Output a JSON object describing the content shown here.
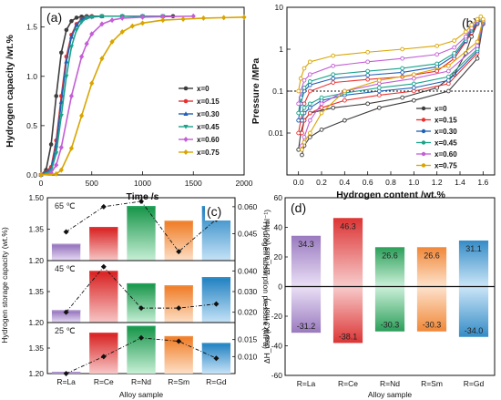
{
  "colors": {
    "x=0": "#3c3c3c",
    "x=0.15": "#e8312f",
    "x=0.30": "#1f5fb5",
    "x=0.45": "#18a38a",
    "x=0.60": "#c35ed6",
    "x=0.75": "#d9a400",
    "La": "#a88cc9",
    "Ce": "#e23030",
    "Nd": "#21a35c",
    "Sm": "#f08a3a",
    "Gd": "#2f8fc9"
  },
  "chart_data": [
    {
      "panel": "(a)",
      "type": "line",
      "xlabel": "Time /s",
      "ylabel": "Hydrogen capacity /wt.%",
      "xlim": [
        0,
        2000
      ],
      "ylim": [
        0,
        1.7
      ],
      "xticks": [
        "0",
        "500",
        "1000",
        "1500",
        "2000"
      ],
      "yticks": [
        "0.0",
        "0.5",
        "1.0",
        "1.5"
      ],
      "legend_position": "center-right",
      "series": [
        {
          "name": "x=0",
          "x": [
            0,
            50,
            100,
            150,
            200,
            250,
            300,
            350,
            400,
            450,
            500,
            600,
            800,
            1000,
            1300
          ],
          "y": [
            0,
            0.05,
            0.31,
            0.8,
            1.24,
            1.47,
            1.56,
            1.595,
            1.605,
            1.61,
            1.61,
            1.61,
            1.61,
            1.61,
            1.61
          ]
        },
        {
          "name": "x=0.15",
          "x": [
            0,
            100,
            150,
            200,
            250,
            300,
            350,
            400,
            450,
            500,
            600,
            800,
            1000,
            1200
          ],
          "y": [
            0,
            0.08,
            0.35,
            0.8,
            1.2,
            1.42,
            1.53,
            1.58,
            1.6,
            1.605,
            1.61,
            1.61,
            1.61,
            1.61
          ]
        },
        {
          "name": "x=0.30",
          "x": [
            0,
            100,
            150,
            200,
            250,
            300,
            350,
            400,
            450,
            500,
            600,
            800,
            1000,
            1200
          ],
          "y": [
            0,
            0.06,
            0.3,
            0.74,
            1.15,
            1.4,
            1.52,
            1.58,
            1.6,
            1.605,
            1.61,
            1.61,
            1.61,
            1.61
          ]
        },
        {
          "name": "x=0.45",
          "x": [
            0,
            100,
            150,
            200,
            250,
            300,
            350,
            400,
            450,
            500,
            600,
            800,
            1000,
            1200
          ],
          "y": [
            0,
            0.04,
            0.22,
            0.6,
            1.0,
            1.3,
            1.47,
            1.55,
            1.59,
            1.6,
            1.61,
            1.61,
            1.61,
            1.61
          ]
        },
        {
          "name": "x=0.60",
          "x": [
            0,
            100,
            150,
            200,
            300,
            400,
            450,
            500,
            600,
            700,
            800,
            1000,
            1200,
            1500
          ],
          "y": [
            0,
            0.02,
            0.1,
            0.28,
            0.8,
            1.2,
            1.33,
            1.43,
            1.53,
            1.57,
            1.59,
            1.6,
            1.605,
            1.61
          ]
        },
        {
          "name": "x=0.75",
          "x": [
            0,
            150,
            200,
            300,
            400,
            500,
            600,
            700,
            800,
            900,
            1000,
            1200,
            1400,
            1600,
            1800,
            2000
          ],
          "y": [
            0,
            0.01,
            0.05,
            0.27,
            0.6,
            0.93,
            1.18,
            1.35,
            1.45,
            1.51,
            1.54,
            1.57,
            1.58,
            1.59,
            1.595,
            1.6
          ]
        }
      ]
    },
    {
      "panel": "(b)",
      "type": "line",
      "xlabel": "Hydrogen content /wt.%",
      "ylabel": "Pressure /MPa",
      "xlim": [
        -0.1,
        1.7
      ],
      "ylim": [
        0.001,
        10
      ],
      "yscale": "log",
      "reference_line_y": 0.1,
      "xticks": [
        "0.0",
        "0.2",
        "0.4",
        "0.6",
        "0.8",
        "1.0",
        "1.2",
        "1.4",
        "1.6"
      ],
      "yticks": [
        "0.01",
        "0.1",
        "1",
        "10"
      ],
      "legend_position": "lower-right",
      "series": [
        {
          "name": "x=0",
          "x": [
            0.0,
            0.02,
            0.05,
            0.1,
            0.3,
            0.6,
            0.9,
            1.2,
            1.35,
            1.45,
            1.5,
            1.55,
            1.58,
            1.6,
            1.55,
            1.3,
            1.0,
            0.7,
            0.4,
            0.2,
            0.1,
            0.05,
            0.03
          ],
          "y": [
            0.004,
            0.01,
            0.02,
            0.03,
            0.04,
            0.05,
            0.07,
            0.12,
            0.25,
            0.8,
            2.0,
            4.0,
            5.0,
            4.0,
            0.6,
            0.1,
            0.06,
            0.04,
            0.02,
            0.012,
            0.008,
            0.005,
            0.003
          ]
        },
        {
          "name": "x=0.15",
          "x": [
            0.0,
            0.02,
            0.05,
            0.1,
            0.3,
            0.6,
            0.9,
            1.2,
            1.35,
            1.45,
            1.5,
            1.55,
            1.58,
            1.6,
            1.55,
            1.3,
            1.0,
            0.7,
            0.4,
            0.2,
            0.1,
            0.05,
            0.03
          ],
          "y": [
            0.01,
            0.02,
            0.05,
            0.1,
            0.16,
            0.19,
            0.22,
            0.3,
            0.6,
            1.5,
            2.5,
            4.0,
            5.0,
            4.0,
            0.8,
            0.15,
            0.1,
            0.08,
            0.06,
            0.04,
            0.03,
            0.02,
            0.01
          ]
        },
        {
          "name": "x=0.30",
          "x": [
            0.0,
            0.02,
            0.05,
            0.1,
            0.3,
            0.6,
            0.9,
            1.2,
            1.35,
            1.45,
            1.5,
            1.55,
            1.58,
            1.6,
            1.55,
            1.3,
            1.0,
            0.7,
            0.4,
            0.2,
            0.1,
            0.05,
            0.03
          ],
          "y": [
            0.02,
            0.05,
            0.1,
            0.14,
            0.2,
            0.24,
            0.28,
            0.38,
            0.7,
            1.6,
            2.8,
            4.2,
            5.0,
            4.2,
            0.9,
            0.18,
            0.12,
            0.1,
            0.08,
            0.06,
            0.04,
            0.03,
            0.02
          ]
        },
        {
          "name": "x=0.45",
          "x": [
            0.0,
            0.02,
            0.05,
            0.1,
            0.3,
            0.6,
            0.9,
            1.2,
            1.35,
            1.45,
            1.5,
            1.55,
            1.58,
            1.6,
            1.55,
            1.3,
            1.0,
            0.7,
            0.4,
            0.2,
            0.1,
            0.05,
            0.03
          ],
          "y": [
            0.03,
            0.07,
            0.12,
            0.17,
            0.25,
            0.3,
            0.35,
            0.45,
            0.8,
            1.8,
            3.0,
            4.5,
            5.2,
            4.5,
            1.0,
            0.22,
            0.15,
            0.12,
            0.09,
            0.07,
            0.05,
            0.04,
            0.03
          ]
        },
        {
          "name": "x=0.60",
          "x": [
            0.0,
            0.02,
            0.05,
            0.1,
            0.3,
            0.6,
            0.9,
            1.2,
            1.35,
            1.45,
            1.5,
            1.55,
            1.58,
            1.6,
            1.55,
            1.3,
            1.0,
            0.7,
            0.4,
            0.2,
            0.1,
            0.05,
            0.03
          ],
          "y": [
            0.05,
            0.1,
            0.18,
            0.25,
            0.4,
            0.5,
            0.6,
            0.75,
            1.1,
            2.0,
            3.2,
            4.8,
            5.5,
            4.8,
            1.2,
            0.3,
            0.2,
            0.15,
            0.1,
            0.05,
            0.02,
            0.008,
            0.005
          ]
        },
        {
          "name": "x=0.75",
          "x": [
            0.0,
            0.02,
            0.05,
            0.1,
            0.3,
            0.6,
            0.9,
            1.2,
            1.35,
            1.45,
            1.5,
            1.55,
            1.58,
            1.6,
            1.55,
            1.3,
            1.0,
            0.7,
            0.4,
            0.2,
            0.1,
            0.05,
            0.03
          ],
          "y": [
            0.1,
            0.2,
            0.35,
            0.5,
            0.7,
            0.85,
            1.0,
            1.2,
            1.6,
            2.6,
            3.8,
            5.2,
            6.0,
            5.2,
            1.5,
            0.4,
            0.25,
            0.18,
            0.1,
            0.03,
            0.01,
            0.006,
            0.004
          ]
        }
      ]
    },
    {
      "panel": "(c)",
      "type": "bar",
      "xlabel": "Alloy sample",
      "ylabel": "Hydrogen storage capacity (wt.%)",
      "y2label": "Hydrogen absorption pressure (MPa)",
      "categories": [
        "R=La",
        "R=Ce",
        "R=Nd",
        "R=Sm",
        "R=Gd"
      ],
      "subplots": [
        {
          "temperature": "65 ℃",
          "ylim": [
            1.2,
            1.5
          ],
          "yticks": [
            "1.20",
            "1.35",
            "1.50"
          ],
          "y2lim": [
            0.03,
            0.065
          ],
          "y2ticks": [
            "0.045",
            "0.060"
          ],
          "capacity": [
            1.28,
            1.36,
            1.46,
            1.39,
            1.46
          ],
          "pressure": [
            0.046,
            0.06,
            0.063,
            0.035,
            0.053
          ]
        },
        {
          "temperature": "45 ℃",
          "ylim": [
            1.2,
            1.5
          ],
          "yticks": [
            "1.20",
            "1.35",
            "1.50"
          ],
          "y2lim": [
            0.015,
            0.045
          ],
          "y2ticks": [
            "0.020",
            "0.030",
            "0.040"
          ],
          "capacity": [
            1.26,
            1.45,
            1.39,
            1.38,
            1.42
          ],
          "pressure": [
            0.02,
            0.042,
            0.022,
            0.022,
            0.024
          ]
        },
        {
          "temperature": "25 ℃",
          "ylim": [
            1.2,
            1.5
          ],
          "yticks": [
            "1.20",
            "1.35",
            "1.50"
          ],
          "y2lim": [
            0.005,
            0.02
          ],
          "y2ticks": [
            "0.010",
            "0.015"
          ],
          "capacity": [
            1.21,
            1.44,
            1.48,
            1.42,
            1.38
          ],
          "pressure": [
            0.005,
            0.01,
            0.0155,
            0.0145,
            0.0095
          ]
        }
      ]
    },
    {
      "panel": "(d)",
      "type": "bar",
      "xlabel": "Alloy sample",
      "ylabel_top": "ΔH_abs (KJ mol⁻¹)",
      "ylabel_bottom": "ΔH_des (KJ mol⁻¹)",
      "ylim": [
        -60,
        60
      ],
      "yticks": [
        "-60",
        "-40",
        "-20",
        "0",
        "20",
        "40",
        "60"
      ],
      "categories": [
        "R=La",
        "R=Ce",
        "R=Nd",
        "R=Sm",
        "R=Gd"
      ],
      "series": [
        {
          "values": [
            34.3,
            46.3,
            26.6,
            26.6,
            31.1
          ],
          "labels": [
            "34.3",
            "46.3",
            "26.6",
            "26.6",
            "31.1"
          ]
        },
        {
          "values": [
            -31.2,
            -38.1,
            -30.3,
            -30.3,
            -34.0
          ],
          "labels": [
            "-31.2",
            "-38.1",
            "-30.3",
            "-30.3",
            "-34.0"
          ]
        }
      ]
    }
  ]
}
